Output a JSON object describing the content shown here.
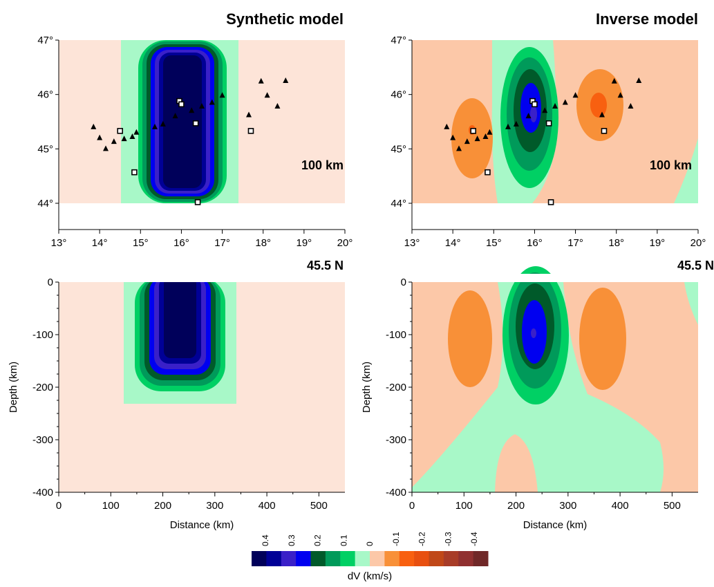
{
  "panels": {
    "top_left_title": "Synthetic model",
    "top_right_title": "Inverse model",
    "depth_tag": "100 km",
    "section_tag": "45.5 N",
    "map_xticks": [
      "13°",
      "14°",
      "15°",
      "16°",
      "17°",
      "18°",
      "19°",
      "20°"
    ],
    "map_yticks": [
      "47°",
      "46°",
      "45°",
      "44°"
    ],
    "section_xticks": [
      "0",
      "100",
      "200",
      "300",
      "400",
      "500"
    ],
    "section_yticks": [
      "0",
      "-100",
      "-200",
      "-300",
      "-400"
    ],
    "xlabel": "Distance (km)",
    "ylabel": "Depth (km)"
  },
  "colorbar": {
    "label": "dV (km/s)",
    "tick_labels": [
      "0.4",
      "0.3",
      "0.2",
      "0.1",
      "0",
      "-0.1",
      "-0.2",
      "-0.3",
      "-0.4"
    ],
    "colors": [
      "#00005a",
      "#000096",
      "#3a20c8",
      "#0000f0",
      "#005a2a",
      "#009a5a",
      "#00d064",
      "#a8f8c8",
      "#fcc8a8",
      "#f89038",
      "#f86010",
      "#e85010",
      "#c04818",
      "#a83c28",
      "#903030",
      "#702828"
    ]
  },
  "chart_data": [
    {
      "type": "heatmap",
      "title": "Synthetic model",
      "annotation": "100 km",
      "x_range_deg_lon": [
        13,
        20
      ],
      "y_range_deg_lat": [
        44,
        47
      ],
      "anomaly": {
        "lon_range": [
          14.55,
          17.4
        ],
        "lat_range": [
          44.0,
          47.0
        ],
        "max_dV": 0.4
      },
      "stations_triangles": [
        [
          13.85,
          45.4
        ],
        [
          14.0,
          45.2
        ],
        [
          14.15,
          45.0
        ],
        [
          14.35,
          45.13
        ],
        [
          14.6,
          45.18
        ],
        [
          14.8,
          45.22
        ],
        [
          14.9,
          45.3
        ],
        [
          15.35,
          45.4
        ],
        [
          15.55,
          45.45
        ],
        [
          15.85,
          45.6
        ],
        [
          16.25,
          45.7
        ],
        [
          16.5,
          45.78
        ],
        [
          16.75,
          45.85
        ],
        [
          17.0,
          45.98
        ],
        [
          17.65,
          45.62
        ],
        [
          17.95,
          46.24
        ],
        [
          18.1,
          45.98
        ],
        [
          18.35,
          45.78
        ],
        [
          18.55,
          46.25
        ]
      ],
      "stations_squares": [
        [
          14.5,
          45.33
        ],
        [
          14.85,
          44.57
        ],
        [
          15.95,
          45.88
        ],
        [
          16.0,
          45.82
        ],
        [
          16.35,
          45.47
        ],
        [
          16.4,
          44.02
        ],
        [
          17.7,
          45.33
        ]
      ]
    },
    {
      "type": "heatmap",
      "title": "Inverse model",
      "annotation": "100 km",
      "x_range_deg_lon": [
        13,
        20
      ],
      "y_range_deg_lat": [
        44,
        47
      ],
      "fast_anomaly_center": [
        16.0,
        45.6
      ],
      "fast_anomaly_max_dV": 0.3,
      "slow_anomaly_centers": [
        [
          14.5,
          45.3
        ],
        [
          17.6,
          45.8
        ]
      ],
      "slow_anomaly_min_dV": -0.2
    },
    {
      "type": "heatmap",
      "annotation": "45.5 N",
      "xlabel": "Distance (km)",
      "ylabel": "Depth (km)",
      "x_range_km": [
        0,
        550
      ],
      "y_range_km": [
        -400,
        0
      ],
      "anomaly": {
        "distance_range": [
          125,
          335
        ],
        "depth_range": [
          -230,
          0
        ],
        "max_dV": 0.4
      }
    },
    {
      "type": "heatmap",
      "annotation": "45.5 N",
      "xlabel": "Distance (km)",
      "ylabel": "Depth (km)",
      "x_range_km": [
        0,
        550
      ],
      "y_range_km": [
        -400,
        0
      ],
      "fast_anomaly": {
        "center": [
          235,
          -100
        ],
        "max_dV": 0.3
      },
      "slow_anomalies": [
        {
          "center": [
            110,
            -130
          ],
          "min_dV": -0.1
        },
        {
          "center": [
            375,
            -130
          ],
          "min_dV": -0.1
        }
      ]
    }
  ]
}
